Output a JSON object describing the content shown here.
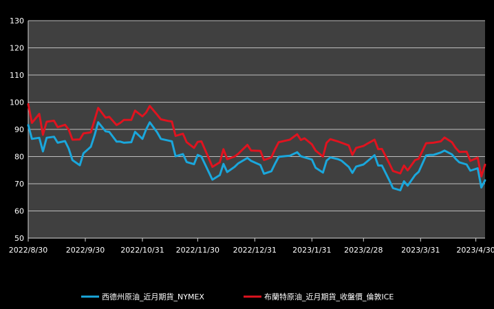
{
  "chart_data": {
    "type": "line",
    "title": "",
    "xlabel": "",
    "ylabel": "",
    "ylim": [
      50,
      130
    ],
    "yticks": [
      50,
      60,
      70,
      80,
      90,
      100,
      110,
      120,
      130
    ],
    "x_tick_labels": [
      "2022/8/30",
      "2022/9/30",
      "2022/10/31",
      "2022/11/30",
      "2022/12/31",
      "2023/1/31",
      "2023/2/28",
      "2023/3/31",
      "2023/4/30"
    ],
    "x_tick_dates": [
      "2022-08-30",
      "2022-09-30",
      "2022-10-31",
      "2022-11-30",
      "2022-12-31",
      "2023-01-31",
      "2023-02-28",
      "2023-03-31",
      "2023-04-30"
    ],
    "x_range": [
      "2022-08-30",
      "2023-05-05"
    ],
    "grid": "horizontal",
    "legend_position": "bottom",
    "plot_background": "#404040",
    "series": [
      {
        "name": "西德州原油_近月期貨_NYMEX",
        "color": "#1aa7dc",
        "points": [
          [
            "2022-08-30",
            91.6
          ],
          [
            "2022-09-01",
            86.5
          ],
          [
            "2022-09-05",
            86.9
          ],
          [
            "2022-09-07",
            81.9
          ],
          [
            "2022-09-09",
            86.9
          ],
          [
            "2022-09-13",
            87.3
          ],
          [
            "2022-09-15",
            85.1
          ],
          [
            "2022-09-19",
            85.7
          ],
          [
            "2022-09-21",
            82.9
          ],
          [
            "2022-09-23",
            78.7
          ],
          [
            "2022-09-27",
            76.8
          ],
          [
            "2022-09-29",
            81.2
          ],
          [
            "2022-10-03",
            83.6
          ],
          [
            "2022-10-05",
            87.8
          ],
          [
            "2022-10-07",
            92.6
          ],
          [
            "2022-10-11",
            89.3
          ],
          [
            "2022-10-13",
            89.1
          ],
          [
            "2022-10-17",
            85.5
          ],
          [
            "2022-10-19",
            85.5
          ],
          [
            "2022-10-21",
            85.1
          ],
          [
            "2022-10-25",
            85.3
          ],
          [
            "2022-10-27",
            89.1
          ],
          [
            "2022-10-31",
            86.5
          ],
          [
            "2022-11-02",
            90.0
          ],
          [
            "2022-11-04",
            92.6
          ],
          [
            "2022-11-08",
            88.9
          ],
          [
            "2022-11-10",
            86.5
          ],
          [
            "2022-11-14",
            85.9
          ],
          [
            "2022-11-16",
            85.6
          ],
          [
            "2022-11-18",
            80.1
          ],
          [
            "2022-11-22",
            80.9
          ],
          [
            "2022-11-24",
            78.0
          ],
          [
            "2022-11-28",
            77.2
          ],
          [
            "2022-11-30",
            80.6
          ],
          [
            "2022-12-02",
            80.0
          ],
          [
            "2022-12-06",
            74.3
          ],
          [
            "2022-12-08",
            71.5
          ],
          [
            "2022-12-12",
            73.2
          ],
          [
            "2022-12-14",
            77.3
          ],
          [
            "2022-12-16",
            74.3
          ],
          [
            "2022-12-20",
            76.2
          ],
          [
            "2022-12-22",
            77.5
          ],
          [
            "2022-12-27",
            79.5
          ],
          [
            "2022-12-29",
            78.4
          ],
          [
            "2023-01-03",
            76.9
          ],
          [
            "2023-01-05",
            73.7
          ],
          [
            "2023-01-09",
            74.6
          ],
          [
            "2023-01-11",
            77.4
          ],
          [
            "2023-01-13",
            79.9
          ],
          [
            "2023-01-17",
            80.2
          ],
          [
            "2023-01-19",
            80.3
          ],
          [
            "2023-01-23",
            81.6
          ],
          [
            "2023-01-25",
            80.1
          ],
          [
            "2023-01-27",
            79.7
          ],
          [
            "2023-01-31",
            78.9
          ],
          [
            "2023-02-02",
            75.9
          ],
          [
            "2023-02-06",
            74.1
          ],
          [
            "2023-02-08",
            78.5
          ],
          [
            "2023-02-10",
            79.7
          ],
          [
            "2023-02-14",
            79.1
          ],
          [
            "2023-02-16",
            78.5
          ],
          [
            "2023-02-20",
            76.2
          ],
          [
            "2023-02-22",
            74.0
          ],
          [
            "2023-02-24",
            76.3
          ],
          [
            "2023-02-28",
            77.1
          ],
          [
            "2023-03-02",
            78.2
          ],
          [
            "2023-03-06",
            80.5
          ],
          [
            "2023-03-08",
            76.7
          ],
          [
            "2023-03-10",
            76.7
          ],
          [
            "2023-03-14",
            71.3
          ],
          [
            "2023-03-16",
            68.4
          ],
          [
            "2023-03-20",
            67.6
          ],
          [
            "2023-03-22",
            70.9
          ],
          [
            "2023-03-24",
            69.3
          ],
          [
            "2023-03-28",
            73.2
          ],
          [
            "2023-03-30",
            74.4
          ],
          [
            "2023-04-03",
            80.4
          ],
          [
            "2023-04-05",
            80.6
          ],
          [
            "2023-04-07",
            80.6
          ],
          [
            "2023-04-11",
            81.5
          ],
          [
            "2023-04-13",
            82.2
          ],
          [
            "2023-04-17",
            80.8
          ],
          [
            "2023-04-19",
            79.2
          ],
          [
            "2023-04-21",
            77.9
          ],
          [
            "2023-04-25",
            77.1
          ],
          [
            "2023-04-27",
            74.8
          ],
          [
            "2023-05-01",
            75.7
          ],
          [
            "2023-05-03",
            68.6
          ],
          [
            "2023-05-05",
            71.3
          ]
        ]
      },
      {
        "name": "布蘭特原油_近月期貨_收盤價_倫敦ICE",
        "color": "#e0131f",
        "points": [
          [
            "2022-08-30",
            99.3
          ],
          [
            "2022-09-01",
            92.4
          ],
          [
            "2022-09-05",
            95.7
          ],
          [
            "2022-09-07",
            88.0
          ],
          [
            "2022-09-09",
            92.8
          ],
          [
            "2022-09-13",
            93.2
          ],
          [
            "2022-09-15",
            90.8
          ],
          [
            "2022-09-19",
            91.7
          ],
          [
            "2022-09-21",
            89.9
          ],
          [
            "2022-09-23",
            86.2
          ],
          [
            "2022-09-27",
            86.3
          ],
          [
            "2022-09-29",
            88.5
          ],
          [
            "2022-10-03",
            88.9
          ],
          [
            "2022-10-05",
            93.4
          ],
          [
            "2022-10-07",
            97.9
          ],
          [
            "2022-10-11",
            94.3
          ],
          [
            "2022-10-13",
            94.6
          ],
          [
            "2022-10-17",
            91.6
          ],
          [
            "2022-10-19",
            92.4
          ],
          [
            "2022-10-21",
            93.5
          ],
          [
            "2022-10-25",
            93.5
          ],
          [
            "2022-10-27",
            96.9
          ],
          [
            "2022-10-31",
            94.8
          ],
          [
            "2022-11-02",
            96.2
          ],
          [
            "2022-11-04",
            98.6
          ],
          [
            "2022-11-08",
            95.4
          ],
          [
            "2022-11-10",
            93.7
          ],
          [
            "2022-11-14",
            93.1
          ],
          [
            "2022-11-16",
            92.9
          ],
          [
            "2022-11-18",
            87.6
          ],
          [
            "2022-11-22",
            88.4
          ],
          [
            "2022-11-24",
            85.3
          ],
          [
            "2022-11-28",
            83.2
          ],
          [
            "2022-11-30",
            85.4
          ],
          [
            "2022-12-02",
            85.6
          ],
          [
            "2022-12-06",
            79.4
          ],
          [
            "2022-12-08",
            76.2
          ],
          [
            "2022-12-12",
            77.9
          ],
          [
            "2022-12-14",
            82.7
          ],
          [
            "2022-12-16",
            79.0
          ],
          [
            "2022-12-20",
            80.0
          ],
          [
            "2022-12-22",
            81.0
          ],
          [
            "2022-12-27",
            84.3
          ],
          [
            "2022-12-29",
            82.2
          ],
          [
            "2023-01-03",
            82.1
          ],
          [
            "2023-01-05",
            78.7
          ],
          [
            "2023-01-09",
            79.7
          ],
          [
            "2023-01-11",
            82.7
          ],
          [
            "2023-01-13",
            85.3
          ],
          [
            "2023-01-17",
            85.9
          ],
          [
            "2023-01-19",
            86.2
          ],
          [
            "2023-01-23",
            88.2
          ],
          [
            "2023-01-25",
            86.1
          ],
          [
            "2023-01-27",
            86.7
          ],
          [
            "2023-01-31",
            84.5
          ],
          [
            "2023-02-02",
            82.2
          ],
          [
            "2023-02-06",
            80.0
          ],
          [
            "2023-02-08",
            85.1
          ],
          [
            "2023-02-10",
            86.4
          ],
          [
            "2023-02-14",
            85.6
          ],
          [
            "2023-02-16",
            85.1
          ],
          [
            "2023-02-20",
            84.1
          ],
          [
            "2023-02-22",
            80.6
          ],
          [
            "2023-02-24",
            83.2
          ],
          [
            "2023-02-28",
            83.9
          ],
          [
            "2023-03-02",
            84.7
          ],
          [
            "2023-03-06",
            86.2
          ],
          [
            "2023-03-08",
            82.7
          ],
          [
            "2023-03-10",
            82.8
          ],
          [
            "2023-03-14",
            77.5
          ],
          [
            "2023-03-16",
            74.7
          ],
          [
            "2023-03-20",
            73.8
          ],
          [
            "2023-03-22",
            76.7
          ],
          [
            "2023-03-24",
            74.9
          ],
          [
            "2023-03-28",
            78.7
          ],
          [
            "2023-03-30",
            79.2
          ],
          [
            "2023-04-03",
            84.9
          ],
          [
            "2023-04-05",
            85.0
          ],
          [
            "2023-04-07",
            85.1
          ],
          [
            "2023-04-11",
            85.6
          ],
          [
            "2023-04-13",
            87.0
          ],
          [
            "2023-04-17",
            85.3
          ],
          [
            "2023-04-19",
            83.2
          ],
          [
            "2023-04-21",
            81.7
          ],
          [
            "2023-04-25",
            81.8
          ],
          [
            "2023-04-27",
            78.4
          ],
          [
            "2023-05-01",
            79.6
          ],
          [
            "2023-05-03",
            72.7
          ],
          [
            "2023-05-05",
            77.0
          ]
        ]
      }
    ]
  }
}
